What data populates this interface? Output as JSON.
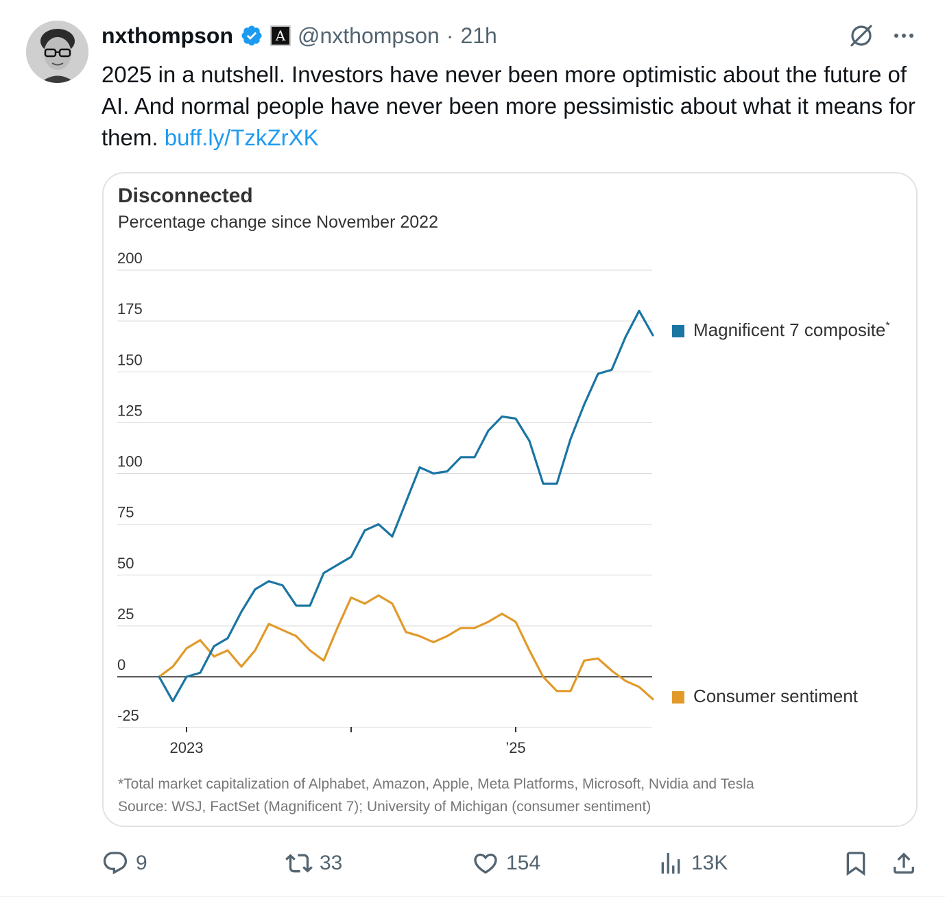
{
  "tweet": {
    "display_name": "nxthompson",
    "handle": "@nxthompson",
    "separator": "·",
    "time": "21h",
    "text": "2025 in a nutshell. Investors have never been more optimistic about the future of AI. And normal people have never been more pessimistic about what it means for them.",
    "link": "buff.ly/TzkZrXK",
    "affiliation_badge": "A",
    "icons": [
      "verified-badge-icon",
      "grok-icon",
      "more-icon",
      "reply-icon",
      "retweet-icon",
      "like-icon",
      "views-icon",
      "bookmark-icon",
      "share-icon"
    ]
  },
  "actions": {
    "replies": "9",
    "retweets": "33",
    "likes": "154",
    "views": "13K"
  },
  "colors": {
    "link": "#1d9bf0",
    "verified": "#1d9bf0",
    "mag7": "#1a75a3",
    "sentiment": "#e19a2a",
    "muted": "#536471"
  },
  "chart_data": {
    "type": "line",
    "title": "Disconnected",
    "subtitle": "Percentage change since November 2022",
    "ylim": [
      -25,
      200
    ],
    "yticks": [
      "200",
      "175",
      "150",
      "125",
      "100",
      "75",
      "50",
      "25",
      "0",
      "-25"
    ],
    "xtick_labels": [
      "2023",
      "’25"
    ],
    "x_start": "2022-11",
    "series": [
      {
        "name": "Magnificent 7 composite",
        "name_suffix": "*",
        "color": "#1a75a3",
        "values": [
          0,
          -12,
          0,
          2,
          15,
          19,
          32,
          43,
          47,
          45,
          35,
          35,
          51,
          55,
          59,
          72,
          75,
          69,
          86,
          103,
          100,
          101,
          108,
          108,
          121,
          128,
          127,
          116,
          95,
          95,
          117,
          134,
          149,
          151,
          167,
          180,
          168
        ]
      },
      {
        "name": "Consumer sentiment",
        "color": "#e19a2a",
        "values": [
          0,
          5,
          14,
          18,
          10,
          13,
          5,
          13,
          26,
          23,
          20,
          13,
          8,
          24,
          39,
          36,
          40,
          36,
          22,
          20,
          17,
          20,
          24,
          24,
          27,
          31,
          27,
          13,
          0,
          -7,
          -7,
          8,
          9,
          3,
          -2,
          -5,
          -11
        ]
      }
    ],
    "footnote": "*Total market capitalization of Alphabet, Amazon, Apple, Meta Platforms, Microsoft, Nvidia and Tesla",
    "source": "Source: WSJ, FactSet (Magnificent 7); University of Michigan (consumer sentiment)",
    "grid": true,
    "legend_position": "right"
  }
}
